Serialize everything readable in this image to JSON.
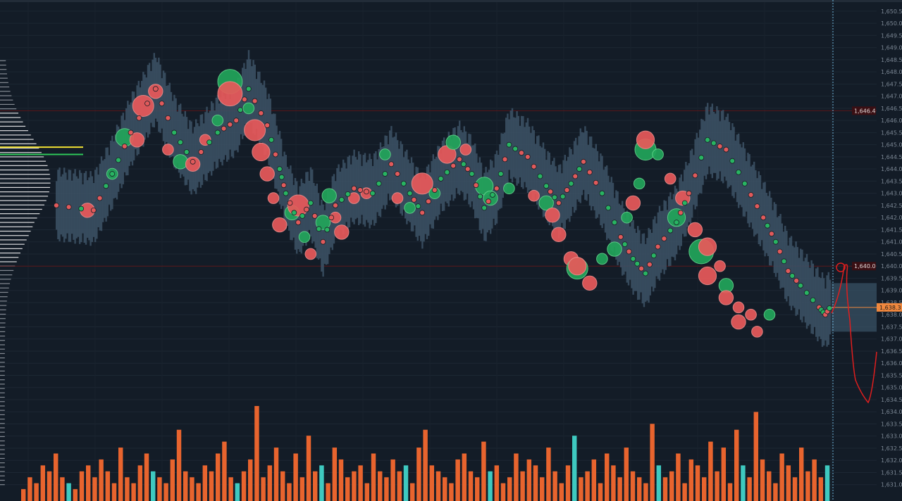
{
  "chart_data": {
    "type": "scatter",
    "title": "",
    "xlabel": "",
    "ylabel": "",
    "ylim": [
      1630.5,
      1650.7
    ],
    "y_ticks": [
      "1,650.5",
      "1,650.0",
      "1,649.5",
      "1,649.0",
      "1,648.5",
      "1,648.0",
      "1,647.5",
      "1,647.0",
      "1,646.5",
      "1,646.0",
      "1,645.5",
      "1,645.0",
      "1,644.5",
      "1,644.0",
      "1,643.5",
      "1,643.0",
      "1,642.5",
      "1,642.0",
      "1,641.5",
      "1,641.0",
      "1,640.5",
      "1,640.0",
      "1,639.5",
      "1,639.0",
      "1,638.5",
      "1,638.0",
      "1,637.5",
      "1,637.0",
      "1,636.5",
      "1,636.0",
      "1,635.5",
      "1,635.0",
      "1,634.5",
      "1,634.0",
      "1,633.5",
      "1,633.0",
      "1,632.5",
      "1,632.0",
      "1,631.5",
      "1,631.0"
    ],
    "price_levels": [
      {
        "label": "1,646.4",
        "value": 1646.4,
        "color": "#5a1518"
      },
      {
        "label": "1,640.0",
        "value": 1640.0,
        "color": "#5a1518"
      }
    ],
    "current_price": {
      "label": "1,638.3",
      "value": 1638.3,
      "color": "#f0883e"
    },
    "price_path": [
      [
        0,
        1642.5
      ],
      [
        6,
        1642.3
      ],
      [
        9,
        1643.8
      ],
      [
        12,
        1645.5
      ],
      [
        16,
        1647.3
      ],
      [
        19,
        1645.5
      ],
      [
        22,
        1644.3
      ],
      [
        26,
        1645.5
      ],
      [
        29,
        1646.0
      ],
      [
        31,
        1647.3
      ],
      [
        34,
        1645.8
      ],
      [
        36,
        1644.0
      ],
      [
        37,
        1643.0
      ],
      [
        39,
        1641.8
      ],
      [
        41,
        1642.6
      ],
      [
        43,
        1641.0
      ],
      [
        45,
        1642.5
      ],
      [
        48,
        1643.2
      ],
      [
        51,
        1643.0
      ],
      [
        54,
        1644.2
      ],
      [
        57,
        1643.0
      ],
      [
        59,
        1642.2
      ],
      [
        62,
        1643.6
      ],
      [
        65,
        1644.4
      ],
      [
        67,
        1643.8
      ],
      [
        69,
        1642.4
      ],
      [
        71,
        1643.2
      ],
      [
        73,
        1645.0
      ],
      [
        76,
        1644.5
      ],
      [
        79,
        1643.3
      ],
      [
        81,
        1642.6
      ],
      [
        83,
        1643.4
      ],
      [
        85,
        1644.3
      ],
      [
        88,
        1643.0
      ],
      [
        91,
        1641.2
      ],
      [
        93,
        1640.3
      ],
      [
        95,
        1639.7
      ],
      [
        97,
        1640.8
      ],
      [
        100,
        1641.8
      ],
      [
        102,
        1643.0
      ],
      [
        105,
        1645.2
      ],
      [
        108,
        1644.8
      ],
      [
        111,
        1643.4
      ],
      [
        114,
        1642.0
      ],
      [
        116,
        1641.0
      ],
      [
        118,
        1639.8
      ],
      [
        120,
        1639.2
      ],
      [
        123,
        1638.3
      ],
      [
        124,
        1638.0
      ],
      [
        125,
        1638.4
      ]
    ],
    "bubbles": [
      {
        "x": 5,
        "y": 1642.3,
        "v": 3,
        "side": "sell"
      },
      {
        "x": 9,
        "y": 1643.8,
        "v": 2,
        "side": "buy"
      },
      {
        "x": 11,
        "y": 1645.3,
        "v": 4,
        "side": "buy"
      },
      {
        "x": 13,
        "y": 1645.2,
        "v": 3,
        "side": "sell"
      },
      {
        "x": 14,
        "y": 1646.6,
        "v": 5,
        "side": "sell"
      },
      {
        "x": 16,
        "y": 1647.2,
        "v": 3,
        "side": "sell"
      },
      {
        "x": 18,
        "y": 1644.8,
        "v": 2,
        "side": "sell"
      },
      {
        "x": 20,
        "y": 1644.3,
        "v": 3,
        "side": "buy"
      },
      {
        "x": 22,
        "y": 1644.2,
        "v": 3,
        "side": "sell"
      },
      {
        "x": 24,
        "y": 1645.2,
        "v": 2,
        "side": "sell"
      },
      {
        "x": 26,
        "y": 1646.0,
        "v": 2,
        "side": "buy"
      },
      {
        "x": 28,
        "y": 1647.6,
        "v": 6,
        "side": "buy"
      },
      {
        "x": 28,
        "y": 1647.1,
        "v": 6,
        "side": "sell"
      },
      {
        "x": 31,
        "y": 1646.5,
        "v": 2,
        "side": "buy"
      },
      {
        "x": 32,
        "y": 1645.6,
        "v": 5,
        "side": "sell"
      },
      {
        "x": 33,
        "y": 1644.7,
        "v": 4,
        "side": "sell"
      },
      {
        "x": 34,
        "y": 1643.8,
        "v": 3,
        "side": "sell"
      },
      {
        "x": 35,
        "y": 1642.8,
        "v": 2,
        "side": "sell"
      },
      {
        "x": 36,
        "y": 1641.7,
        "v": 3,
        "side": "sell"
      },
      {
        "x": 38,
        "y": 1642.2,
        "v": 3,
        "side": "buy"
      },
      {
        "x": 39,
        "y": 1642.5,
        "v": 5,
        "side": "sell"
      },
      {
        "x": 40,
        "y": 1641.2,
        "v": 2,
        "side": "buy"
      },
      {
        "x": 41,
        "y": 1640.5,
        "v": 2,
        "side": "sell"
      },
      {
        "x": 43,
        "y": 1641.8,
        "v": 3,
        "side": "buy"
      },
      {
        "x": 44,
        "y": 1642.9,
        "v": 3,
        "side": "buy"
      },
      {
        "x": 45,
        "y": 1642.0,
        "v": 2,
        "side": "sell"
      },
      {
        "x": 46,
        "y": 1641.4,
        "v": 3,
        "side": "sell"
      },
      {
        "x": 48,
        "y": 1642.8,
        "v": 2,
        "side": "sell"
      },
      {
        "x": 50,
        "y": 1643.0,
        "v": 2,
        "side": "sell"
      },
      {
        "x": 53,
        "y": 1644.6,
        "v": 2,
        "side": "buy"
      },
      {
        "x": 55,
        "y": 1642.8,
        "v": 2,
        "side": "sell"
      },
      {
        "x": 57,
        "y": 1642.4,
        "v": 2,
        "side": "buy"
      },
      {
        "x": 59,
        "y": 1643.4,
        "v": 5,
        "side": "sell"
      },
      {
        "x": 61,
        "y": 1643.0,
        "v": 2,
        "side": "buy"
      },
      {
        "x": 63,
        "y": 1644.6,
        "v": 4,
        "side": "sell"
      },
      {
        "x": 64,
        "y": 1645.1,
        "v": 3,
        "side": "buy"
      },
      {
        "x": 66,
        "y": 1644.8,
        "v": 2,
        "side": "sell"
      },
      {
        "x": 69,
        "y": 1643.3,
        "v": 4,
        "side": "buy"
      },
      {
        "x": 70,
        "y": 1642.8,
        "v": 3,
        "side": "buy"
      },
      {
        "x": 73,
        "y": 1643.2,
        "v": 2,
        "side": "buy"
      },
      {
        "x": 77,
        "y": 1642.9,
        "v": 2,
        "side": "sell"
      },
      {
        "x": 79,
        "y": 1642.6,
        "v": 3,
        "side": "buy"
      },
      {
        "x": 80,
        "y": 1642.1,
        "v": 3,
        "side": "sell"
      },
      {
        "x": 81,
        "y": 1641.3,
        "v": 3,
        "side": "sell"
      },
      {
        "x": 83,
        "y": 1640.3,
        "v": 3,
        "side": "sell"
      },
      {
        "x": 84,
        "y": 1639.9,
        "v": 5,
        "side": "buy"
      },
      {
        "x": 84,
        "y": 1640.0,
        "v": 4,
        "side": "sell"
      },
      {
        "x": 86,
        "y": 1639.3,
        "v": 3,
        "side": "sell"
      },
      {
        "x": 88,
        "y": 1640.3,
        "v": 2,
        "side": "buy"
      },
      {
        "x": 90,
        "y": 1640.7,
        "v": 3,
        "side": "buy"
      },
      {
        "x": 92,
        "y": 1642.0,
        "v": 2,
        "side": "buy"
      },
      {
        "x": 93,
        "y": 1642.6,
        "v": 3,
        "side": "sell"
      },
      {
        "x": 94,
        "y": 1643.4,
        "v": 2,
        "side": "buy"
      },
      {
        "x": 95,
        "y": 1644.8,
        "v": 5,
        "side": "buy"
      },
      {
        "x": 95,
        "y": 1645.2,
        "v": 4,
        "side": "sell"
      },
      {
        "x": 97,
        "y": 1644.6,
        "v": 2,
        "side": "buy"
      },
      {
        "x": 99,
        "y": 1643.6,
        "v": 2,
        "side": "sell"
      },
      {
        "x": 101,
        "y": 1642.8,
        "v": 3,
        "side": "sell"
      },
      {
        "x": 100,
        "y": 1642.0,
        "v": 4,
        "side": "buy"
      },
      {
        "x": 103,
        "y": 1641.5,
        "v": 3,
        "side": "sell"
      },
      {
        "x": 104,
        "y": 1640.6,
        "v": 6,
        "side": "buy"
      },
      {
        "x": 105,
        "y": 1640.8,
        "v": 4,
        "side": "sell"
      },
      {
        "x": 105,
        "y": 1639.6,
        "v": 4,
        "side": "sell"
      },
      {
        "x": 107,
        "y": 1640.0,
        "v": 2,
        "side": "sell"
      },
      {
        "x": 108,
        "y": 1639.2,
        "v": 3,
        "side": "buy"
      },
      {
        "x": 108,
        "y": 1638.7,
        "v": 3,
        "side": "sell"
      },
      {
        "x": 110,
        "y": 1638.3,
        "v": 2,
        "side": "sell"
      },
      {
        "x": 110,
        "y": 1637.7,
        "v": 3,
        "side": "sell"
      },
      {
        "x": 112,
        "y": 1638.0,
        "v": 2,
        "side": "sell"
      },
      {
        "x": 113,
        "y": 1637.3,
        "v": 2,
        "side": "sell"
      },
      {
        "x": 115,
        "y": 1638.0,
        "v": 2,
        "side": "buy"
      }
    ],
    "volume": [
      2,
      4,
      3,
      6,
      5,
      8,
      4,
      3,
      2,
      5,
      6,
      4,
      7,
      5,
      3,
      9,
      4,
      3,
      6,
      8,
      5,
      4,
      3,
      7,
      12,
      5,
      4,
      3,
      6,
      5,
      8,
      10,
      4,
      3,
      5,
      7,
      16,
      4,
      6,
      9,
      5,
      3,
      8,
      4,
      11,
      5,
      6,
      3,
      9,
      7,
      4,
      5,
      6,
      3,
      8,
      5,
      4,
      7,
      5,
      6,
      3,
      9,
      12,
      6,
      5,
      4,
      3,
      7,
      8,
      5,
      4,
      10,
      5,
      6,
      3,
      4,
      8,
      5,
      7,
      6,
      4,
      9,
      5,
      3,
      6,
      11,
      4,
      5,
      7,
      3,
      8,
      6,
      4,
      9,
      5,
      4,
      3,
      13,
      6,
      4,
      5,
      8,
      3,
      7,
      6,
      4,
      10,
      5,
      9,
      3,
      12,
      6,
      4,
      15,
      7,
      5,
      3,
      8,
      6,
      4,
      9,
      5,
      7,
      4,
      6
    ]
  }
}
